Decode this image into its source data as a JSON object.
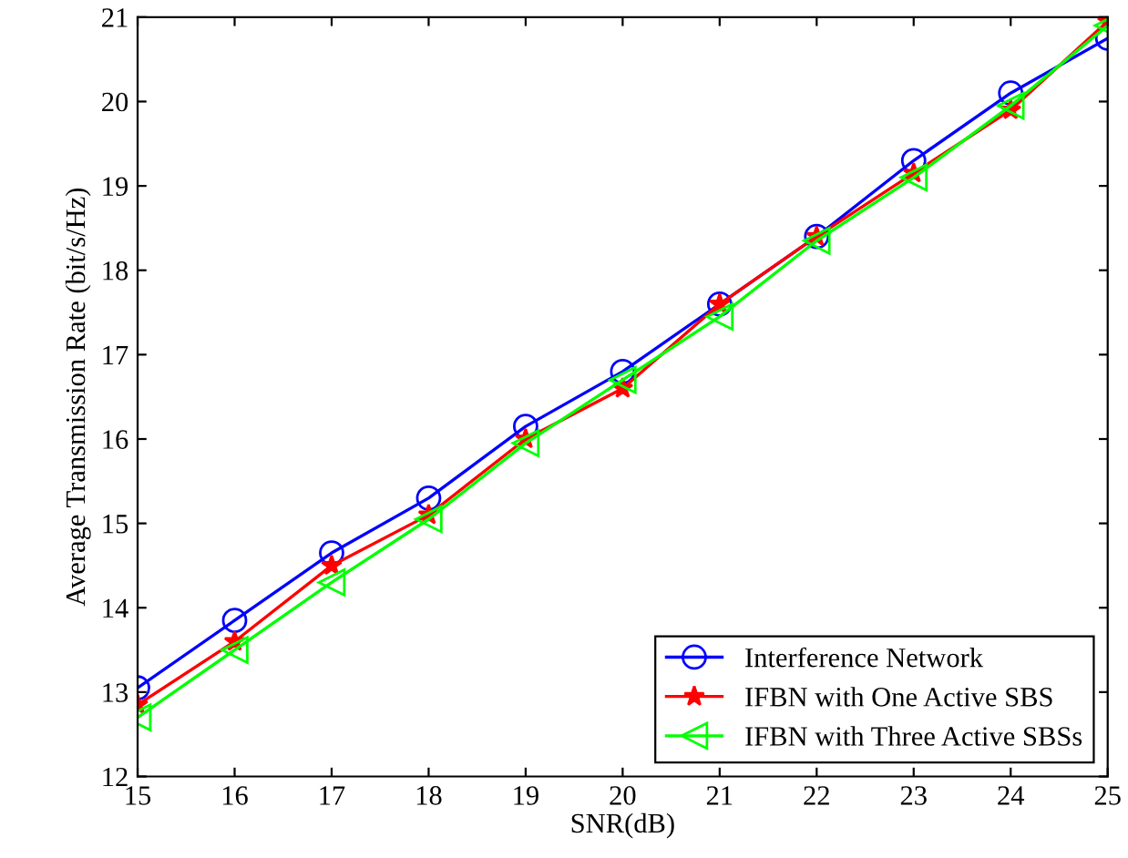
{
  "chart_data": {
    "type": "line",
    "xlabel": "SNR(dB)",
    "ylabel": "Average Transmission Rate (bit/s/Hz)",
    "x": [
      15,
      16,
      17,
      18,
      19,
      20,
      21,
      22,
      23,
      24,
      25
    ],
    "series": [
      {
        "name": "Interference Network",
        "color": "#0000ff",
        "marker": "circle",
        "values": [
          13.05,
          13.85,
          14.65,
          15.3,
          16.15,
          16.8,
          17.6,
          18.4,
          19.3,
          20.1,
          20.75
        ]
      },
      {
        "name": "IFBN with One Active SBS",
        "color": "#ff0000",
        "marker": "star",
        "values": [
          12.85,
          13.6,
          14.5,
          15.1,
          16.0,
          16.6,
          17.6,
          18.4,
          19.15,
          19.9,
          20.95
        ]
      },
      {
        "name": "IFBN with Three Active SBSs",
        "color": "#00ff00",
        "marker": "triangle",
        "values": [
          12.7,
          13.5,
          14.3,
          15.05,
          15.95,
          16.7,
          17.45,
          18.35,
          19.1,
          19.95,
          20.9
        ]
      }
    ],
    "xlim": [
      15,
      25
    ],
    "xticks": [
      15,
      16,
      17,
      18,
      19,
      20,
      21,
      22,
      23,
      24,
      25
    ],
    "ylim": [
      12,
      21
    ],
    "yticks": [
      12,
      13,
      14,
      15,
      16,
      17,
      18,
      19,
      20,
      21
    ],
    "grid": false,
    "legend": "bottom right",
    "line_style": "solid"
  }
}
